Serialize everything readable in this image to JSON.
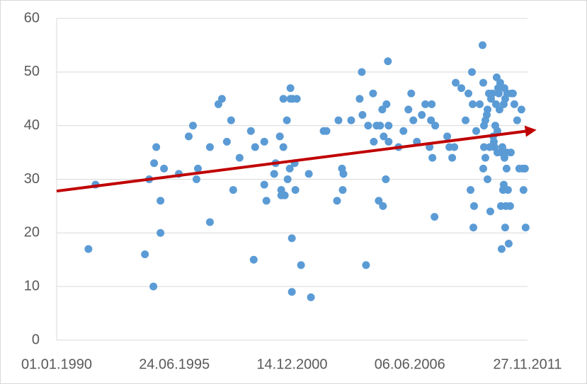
{
  "chart_data": {
    "type": "scatter",
    "color": "#5b9bd5",
    "grid": true,
    "xlim": [
      32874,
      40874
    ],
    "xticks": [
      {
        "value": 32874,
        "label": "01.01.1990"
      },
      {
        "value": 34874,
        "label": "24.06.1995"
      },
      {
        "value": 36874,
        "label": "14.12.2000"
      },
      {
        "value": 38874,
        "label": "06.06.2006"
      },
      {
        "value": 40874,
        "label": "27.11.2011"
      }
    ],
    "ylim": [
      0,
      60
    ],
    "yticks": [
      0,
      10,
      20,
      30,
      40,
      50,
      60
    ],
    "trendline": {
      "color": "#c00000",
      "x": [
        32874,
        40874
      ],
      "y": [
        27.8,
        39
      ]
    },
    "x": [
      33414,
      33534,
      34374,
      34446,
      34518,
      34530,
      34566,
      34638,
      34638,
      34698,
      34950,
      35118,
      35190,
      35250,
      35274,
      35478,
      35478,
      35622,
      35682,
      35766,
      35838,
      35874,
      35982,
      36174,
      36222,
      36246,
      36402,
      36402,
      36438,
      36570,
      36594,
      36666,
      36690,
      36690,
      36726,
      36726,
      36750,
      36786,
      36798,
      36834,
      36846,
      36846,
      36870,
      36870,
      36882,
      36918,
      36930,
      36954,
      37026,
      37158,
      37194,
      37410,
      37458,
      37638,
      37662,
      37722,
      37734,
      37746,
      37878,
      38022,
      38058,
      38070,
      38130,
      38166,
      38250,
      38262,
      38310,
      38346,
      38370,
      38406,
      38418,
      38430,
      38466,
      38478,
      38502,
      38514,
      38514,
      38682,
      38766,
      38850,
      38898,
      38934,
      38994,
      39078,
      39138,
      39210,
      39234,
      39246,
      39258,
      39294,
      39306,
      39510,
      39546,
      39594,
      39630,
      39654,
      39750,
      39822,
      39870,
      39906,
      39930,
      39942,
      39954,
      39966,
      40002,
      40062,
      40110,
      40122,
      40122,
      40134,
      40134,
      40158,
      40158,
      40182,
      40194,
      40194,
      40218,
      40230,
      40242,
      40254,
      40278,
      40290,
      40302,
      40314,
      40326,
      40338,
      40350,
      40362,
      40362,
      40374,
      40386,
      40398,
      40410,
      40422,
      40434,
      40434,
      40446,
      40458,
      40470,
      40470,
      40482,
      40482,
      40494,
      40494,
      40506,
      40518,
      40518,
      40530,
      40542,
      40554,
      40578,
      40590,
      40602,
      40626,
      40650,
      40698,
      40734,
      40770,
      40794,
      40806,
      40830,
      40842
    ],
    "values": [
      17,
      29,
      16,
      30,
      10,
      33,
      36,
      26,
      20,
      32,
      31,
      38,
      40,
      30,
      32,
      22,
      36,
      44,
      45,
      37,
      41,
      28,
      34,
      39,
      15,
      36,
      37,
      29,
      26,
      31,
      33,
      38,
      27,
      28,
      45,
      36,
      27,
      41,
      30,
      32,
      45,
      47,
      19,
      9,
      45,
      33,
      28,
      45,
      14,
      31,
      8,
      39,
      39,
      26,
      41,
      32,
      28,
      31,
      41,
      45,
      50,
      42,
      14,
      40,
      46,
      37,
      40,
      26,
      40,
      43,
      25,
      38,
      30,
      44,
      52,
      40,
      37,
      36,
      39,
      43,
      46,
      41,
      37,
      42,
      44,
      36,
      41,
      44,
      34,
      23,
      40,
      38,
      36,
      34,
      36,
      48,
      47,
      41,
      46,
      28,
      50,
      44,
      21,
      25,
      39,
      44,
      55,
      48,
      32,
      36,
      40,
      34,
      41,
      42,
      43,
      30,
      46,
      36,
      24,
      45,
      46,
      38,
      37,
      36,
      40,
      44,
      49,
      39,
      35,
      47,
      46,
      43,
      48,
      25,
      17,
      35,
      36,
      28,
      29,
      44,
      47,
      34,
      21,
      45,
      25,
      35,
      32,
      46,
      28,
      18,
      25,
      35,
      46,
      46,
      44,
      41,
      32,
      43,
      32,
      28,
      32,
      21
    ]
  }
}
